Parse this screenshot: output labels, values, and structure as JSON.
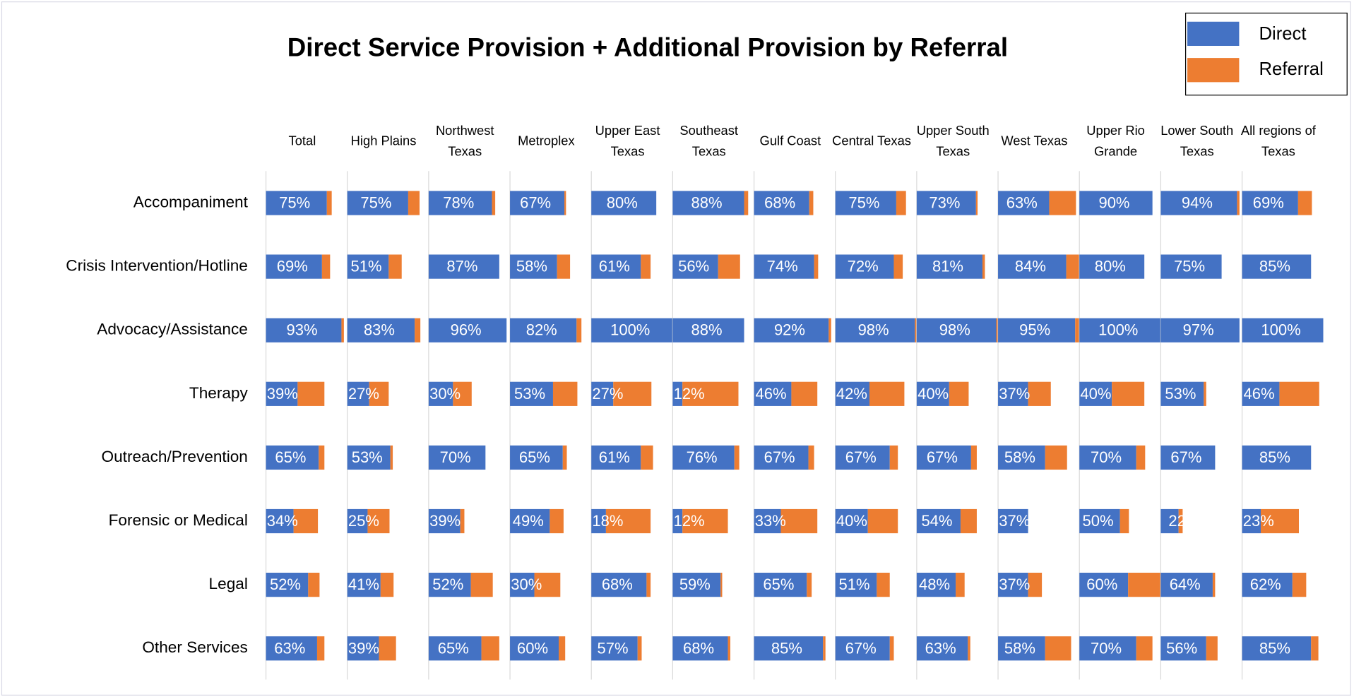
{
  "chart_data": {
    "type": "bar",
    "orientation": "horizontal",
    "title": "Direct Service Provision + Additional Provision by Referral",
    "legend": "upper right",
    "xlim": [
      0,
      100
    ],
    "categories": [
      "Accompaniment",
      "Crisis Intervention/Hotline",
      "Advocacy/Assistance",
      "Therapy",
      "Outreach/Prevention",
      "Forensic or Medical",
      "Legal",
      "Other Services"
    ],
    "panels": [
      "Total",
      "High Plains",
      "Northwest Texas",
      "Metroplex",
      "Upper East Texas",
      "Southeast Texas",
      "Gulf Coast",
      "Central Texas",
      "Upper South Texas",
      "West Texas",
      "Upper Rio Grande",
      "Lower South Texas",
      "All regions of Texas"
    ],
    "series": [
      {
        "name": "Direct",
        "color": "#4472c4",
        "values": [
          [
            75,
            69,
            93,
            39,
            65,
            34,
            52,
            63
          ],
          [
            75,
            51,
            83,
            27,
            53,
            25,
            41,
            39
          ],
          [
            78,
            87,
            96,
            30,
            70,
            39,
            52,
            65
          ],
          [
            67,
            58,
            82,
            53,
            65,
            49,
            30,
            60
          ],
          [
            80,
            61,
            100,
            27,
            61,
            18,
            68,
            57
          ],
          [
            88,
            56,
            88,
            12,
            76,
            12,
            59,
            68
          ],
          [
            68,
            74,
            92,
            46,
            67,
            33,
            65,
            85
          ],
          [
            75,
            72,
            98,
            42,
            67,
            40,
            51,
            67
          ],
          [
            73,
            81,
            98,
            40,
            67,
            54,
            48,
            63
          ],
          [
            63,
            84,
            95,
            37,
            58,
            37,
            37,
            58
          ],
          [
            90,
            80,
            100,
            40,
            70,
            50,
            60,
            70
          ],
          [
            94,
            75,
            97,
            53,
            67,
            22,
            64,
            56
          ],
          [
            69,
            85,
            100,
            46,
            85,
            23,
            62,
            85
          ]
        ],
        "value_labels": [
          [
            "75%",
            "69%",
            "93%",
            "39%",
            "65%",
            "34%",
            "52%",
            "63%"
          ],
          [
            "75%",
            "51%",
            "83%",
            "27%",
            "53%",
            "25%",
            "41%",
            "39%"
          ],
          [
            "78%",
            "87%",
            "96%",
            "30%",
            "70%",
            "39%",
            "52%",
            "65%"
          ],
          [
            "67%",
            "58%",
            "82%",
            "53%",
            "65%",
            "49%",
            "30%",
            "60%"
          ],
          [
            "80%",
            "61%",
            "100%",
            "27%",
            "61%",
            "18%",
            "68%",
            "57%"
          ],
          [
            "88%",
            "56%",
            "88%",
            "12%",
            "76%",
            "12%",
            "59%",
            "68%"
          ],
          [
            "68%",
            "74%",
            "92%",
            "46%",
            "67%",
            "33%",
            "65%",
            "85%"
          ],
          [
            "75%",
            "72%",
            "98%",
            "42%",
            "67%",
            "40%",
            "51%",
            "67%"
          ],
          [
            "73%",
            "81%",
            "98%",
            "40%",
            "67%",
            "54%",
            "48%",
            "63%"
          ],
          [
            "63%",
            "84%",
            "95%",
            "37%",
            "58%",
            "37%",
            "37%",
            "58%"
          ],
          [
            "90%",
            "80%",
            "100%",
            "40%",
            "70%",
            "50%",
            "60%",
            "70%"
          ],
          [
            "94%",
            "75%",
            "97%",
            "53%",
            "67%",
            "22",
            "64%",
            "56%"
          ],
          [
            "69%",
            "85%",
            "100%",
            "46%",
            "85%",
            "23%",
            "62%",
            "85%"
          ]
        ]
      },
      {
        "name": "Referral",
        "color": "#ed7d31",
        "values": [
          [
            6,
            10,
            3,
            33,
            7,
            30,
            14,
            9
          ],
          [
            14,
            16,
            7,
            24,
            3,
            27,
            16,
            21
          ],
          [
            4,
            0,
            0,
            23,
            0,
            5,
            27,
            22
          ],
          [
            2,
            16,
            6,
            30,
            5,
            17,
            32,
            8
          ],
          [
            0,
            12,
            0,
            47,
            15,
            55,
            5,
            5
          ],
          [
            5,
            27,
            0,
            69,
            6,
            56,
            2,
            3
          ],
          [
            5,
            5,
            3,
            32,
            7,
            45,
            6,
            3
          ],
          [
            12,
            11,
            2,
            43,
            10,
            37,
            16,
            5
          ],
          [
            2,
            3,
            2,
            24,
            7,
            20,
            11,
            3
          ],
          [
            33,
            17,
            5,
            28,
            27,
            0,
            17,
            32
          ],
          [
            0,
            0,
            0,
            40,
            11,
            11,
            40,
            20
          ],
          [
            3,
            0,
            0,
            3,
            0,
            5,
            3,
            14
          ],
          [
            17,
            0,
            0,
            49,
            0,
            47,
            17,
            9
          ]
        ]
      }
    ]
  }
}
